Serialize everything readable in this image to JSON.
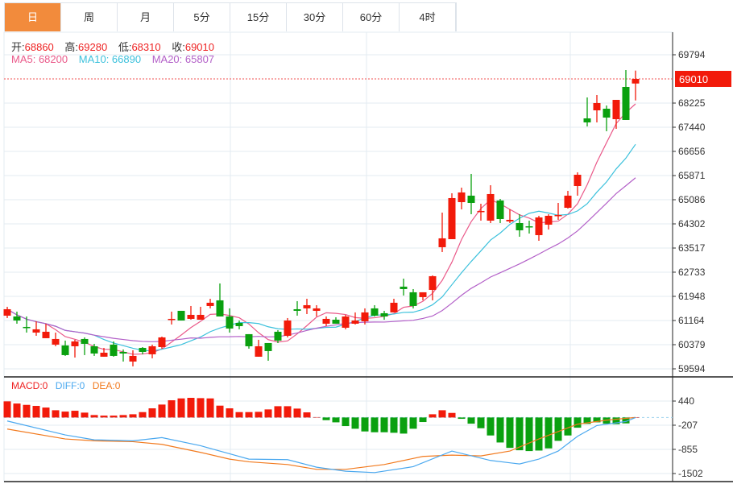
{
  "tabs": [
    {
      "label": "日",
      "active": true
    },
    {
      "label": "周"
    },
    {
      "label": "月"
    },
    {
      "label": "5分"
    },
    {
      "label": "15分"
    },
    {
      "label": "30分"
    },
    {
      "label": "60分"
    },
    {
      "label": "4时"
    }
  ],
  "ohlc_legend": {
    "open_label": "开:",
    "open": "68860",
    "high_label": "高:",
    "high": "69280",
    "low_label": "低:",
    "low": "68310",
    "close_label": "收:",
    "close": "69010"
  },
  "ma_legend": {
    "ma5": "MA5: 68200",
    "ma10": "MA10: 66890",
    "ma20": "MA20: 65807"
  },
  "macd_legend": {
    "macd": "MACD:0",
    "diff": "DIFF:0",
    "dea": "DEA:0"
  },
  "colors": {
    "up": "#f21a0a",
    "down": "#0aa00f",
    "ma5": "#ea5a8a",
    "ma10": "#3cc1dc",
    "ma20": "#b360c8",
    "diff": "#4aa8ef",
    "dea": "#f27a1e",
    "grid": "#e3ebf2"
  },
  "chart_data": {
    "type": "candlestick",
    "current_price": "69010",
    "price_ticks": [
      "69794",
      "68225",
      "67440",
      "66656",
      "65871",
      "65086",
      "64302",
      "63517",
      "62733",
      "61948",
      "61164",
      "60379",
      "59594"
    ],
    "ylim": [
      59594,
      69794
    ],
    "candles": [
      [
        61321,
        61530,
        61609,
        61243
      ],
      [
        61295,
        61164,
        61452,
        61060
      ],
      [
        60955,
        60929,
        61295,
        60772
      ],
      [
        60772,
        60877,
        61138,
        60667
      ],
      [
        60589,
        60798,
        61060,
        60589
      ],
      [
        60380,
        60563,
        60772,
        60327
      ],
      [
        60354,
        60040,
        60511,
        60014
      ],
      [
        60327,
        60484,
        60537,
        59961
      ],
      [
        60563,
        60406,
        60615,
        60040
      ],
      [
        60327,
        60092,
        60406,
        60014
      ],
      [
        59988,
        60118,
        60275,
        59988
      ],
      [
        60380,
        60014,
        60484,
        59988
      ],
      [
        60144,
        60092,
        60223,
        59831
      ],
      [
        59831,
        60014,
        60197,
        59674
      ],
      [
        60275,
        60144,
        60301,
        60066
      ],
      [
        60066,
        60327,
        60380,
        59935
      ],
      [
        60301,
        60615,
        60641,
        60249
      ],
      [
        61190,
        61217,
        61452,
        61034
      ],
      [
        61478,
        61164,
        61478,
        61164
      ],
      [
        61217,
        61347,
        61635,
        61190
      ],
      [
        61190,
        61347,
        61609,
        61190
      ],
      [
        61635,
        61740,
        61870,
        61557
      ],
      [
        61818,
        61295,
        62367,
        61295
      ],
      [
        61295,
        60903,
        61557,
        60772
      ],
      [
        61086,
        60981,
        61164,
        60877
      ],
      [
        60720,
        60327,
        60720,
        60249
      ],
      [
        59988,
        60327,
        60537,
        59988
      ],
      [
        60432,
        60171,
        60432,
        59857
      ],
      [
        60798,
        60511,
        60850,
        60432
      ],
      [
        60667,
        61164,
        61243,
        60615
      ],
      [
        61530,
        61478,
        61792,
        61321
      ],
      [
        61557,
        61661,
        61870,
        61373
      ],
      [
        61478,
        61557,
        61661,
        61295
      ],
      [
        61060,
        61217,
        61295,
        60981
      ],
      [
        61190,
        61060,
        61269,
        61060
      ],
      [
        60929,
        61295,
        61347,
        60877
      ],
      [
        61060,
        61164,
        61426,
        61034
      ],
      [
        61138,
        61426,
        61557,
        61034
      ],
      [
        61557,
        61321,
        61661,
        61295
      ],
      [
        61400,
        61295,
        61478,
        61190
      ],
      [
        61426,
        61740,
        61870,
        61426
      ],
      [
        62263,
        62184,
        62524,
        61975
      ],
      [
        62080,
        61635,
        62184,
        61557
      ],
      [
        61923,
        62080,
        62080,
        61818
      ],
      [
        62158,
        62603,
        62629,
        61818
      ],
      [
        63544,
        63832,
        64668,
        63387
      ],
      [
        63805,
        65139,
        65296,
        63805
      ],
      [
        65008,
        65322,
        65479,
        64773
      ],
      [
        65218,
        64982,
        65924,
        64616
      ],
      [
        64695,
        64721,
        64956,
        64407
      ],
      [
        64407,
        65270,
        65557,
        64328
      ],
      [
        65061,
        64459,
        65113,
        64328
      ],
      [
        64381,
        64433,
        64773,
        64328
      ],
      [
        64328,
        64093,
        64616,
        63884
      ],
      [
        64224,
        64198,
        64407,
        63988
      ],
      [
        63936,
        64511,
        64564,
        63753
      ],
      [
        64276,
        64564,
        64616,
        64119
      ],
      [
        64564,
        64590,
        64982,
        64433
      ],
      [
        64825,
        65218,
        65374,
        64799
      ],
      [
        65531,
        65897,
        65976,
        65218
      ],
      [
        67728,
        67597,
        68408,
        67466
      ],
      [
        67989,
        68225,
        68486,
        67597
      ],
      [
        68042,
        67754,
        68146,
        67310
      ],
      [
        67702,
        68329,
        68329,
        67388
      ],
      [
        68748,
        67676,
        69297,
        67676
      ],
      [
        68860,
        69010,
        69280,
        68310
      ]
    ],
    "macd_ticks": [
      "440",
      "-207",
      "-855",
      "-1502"
    ],
    "macd_ylim": [
      -1502,
      440
    ],
    "macd_hist": [
      432,
      374,
      338,
      310,
      266,
      194,
      158,
      180,
      130,
      65,
      50,
      50,
      65,
      86,
      144,
      245,
      346,
      461,
      511,
      526,
      518,
      511,
      317,
      245,
      144,
      144,
      151,
      216,
      302,
      302,
      238,
      137,
      10,
      -72,
      -130,
      -230,
      -302,
      -374,
      -396,
      -396,
      -410,
      -432,
      -302,
      -122,
      86,
      194,
      122,
      -36,
      -166,
      -288,
      -482,
      -670,
      -814,
      -878,
      -900,
      -886,
      -828,
      -626,
      -482,
      -274,
      -173,
      -130,
      -166,
      -180,
      -158,
      0
    ],
    "diff": [
      [
        1,
        -94
      ],
      [
        7,
        -468
      ],
      [
        10,
        -598
      ],
      [
        14,
        -626
      ],
      [
        17,
        -540
      ],
      [
        21,
        -756
      ],
      [
        24,
        -972
      ],
      [
        26,
        -1116
      ],
      [
        30,
        -1130
      ],
      [
        33,
        -1332
      ],
      [
        36,
        -1440
      ],
      [
        39,
        -1476
      ],
      [
        43,
        -1318
      ],
      [
        47,
        -900
      ],
      [
        51,
        -1152
      ],
      [
        54,
        -1246
      ],
      [
        56,
        -1116
      ],
      [
        58,
        -900
      ],
      [
        60,
        -504
      ],
      [
        62,
        -216
      ],
      [
        65,
        -108
      ],
      [
        66,
        0
      ]
    ],
    "dea": [
      [
        1,
        -310
      ],
      [
        7,
        -576
      ],
      [
        10,
        -626
      ],
      [
        14,
        -648
      ],
      [
        17,
        -720
      ],
      [
        21,
        -936
      ],
      [
        24,
        -1116
      ],
      [
        26,
        -1188
      ],
      [
        30,
        -1260
      ],
      [
        33,
        -1390
      ],
      [
        36,
        -1390
      ],
      [
        40,
        -1260
      ],
      [
        44,
        -1044
      ],
      [
        47,
        -1008
      ],
      [
        50,
        -1030
      ],
      [
        53,
        -900
      ],
      [
        56,
        -576
      ],
      [
        60,
        -180
      ],
      [
        63,
        -72
      ],
      [
        66,
        0
      ]
    ]
  }
}
